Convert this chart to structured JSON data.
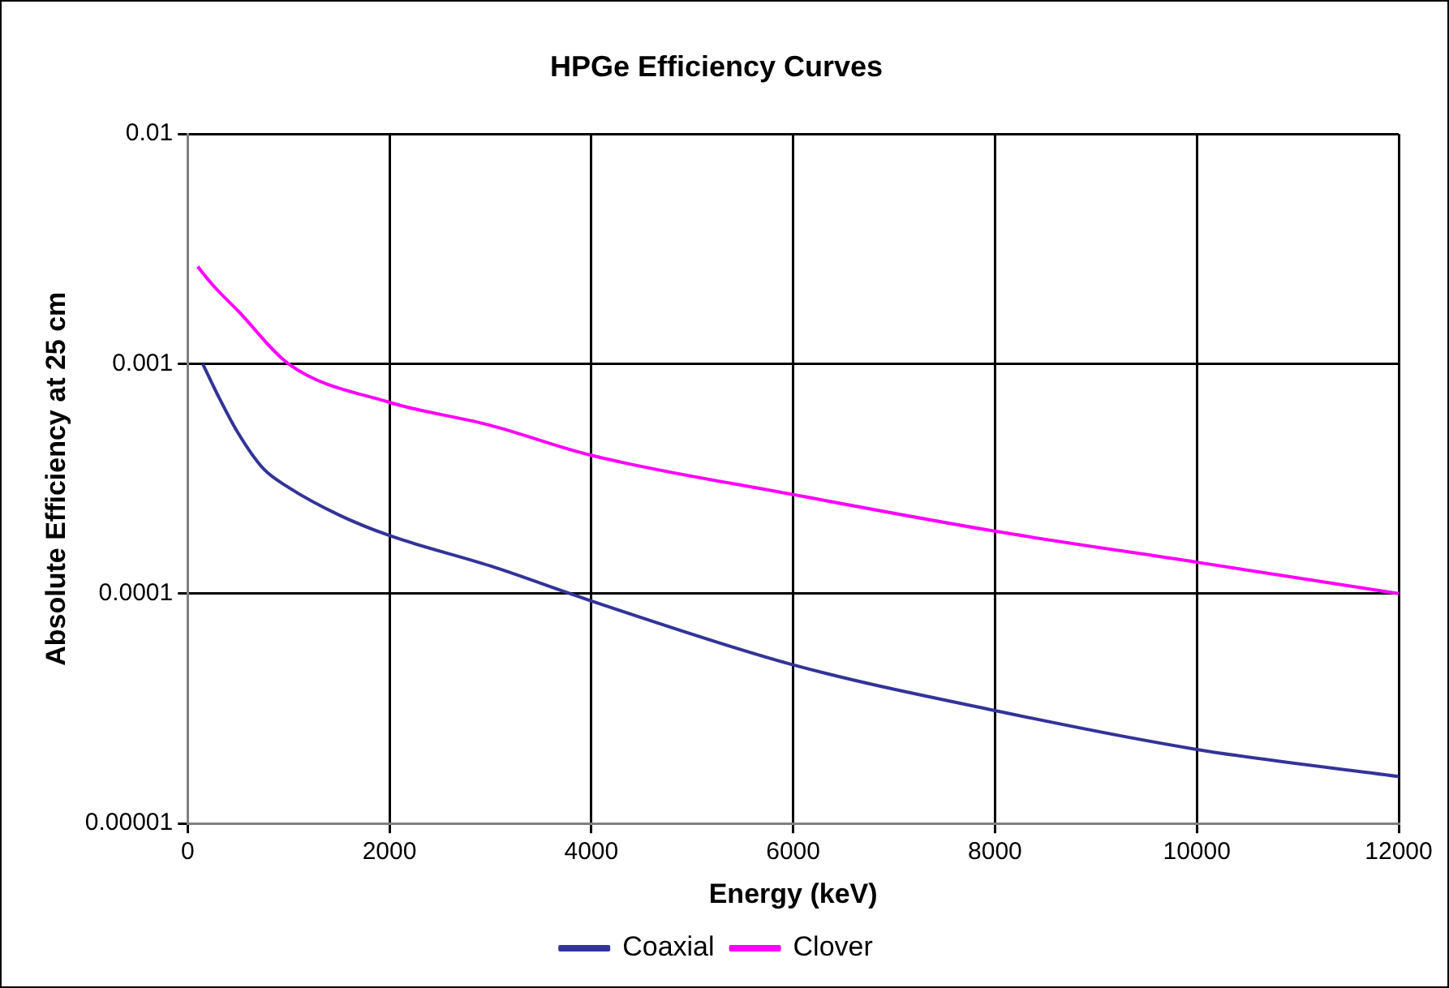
{
  "chart_data": {
    "type": "line",
    "title": "HPGe Efficiency Curves",
    "xlabel": "Energy (keV)",
    "ylabel": "Absolute Efficiency at 25 cm",
    "series": [
      {
        "name": "Coaxial",
        "color": "#333399",
        "x": [
          150,
          300,
          500,
          750,
          1000,
          1500,
          2000,
          3000,
          4000,
          6000,
          8000,
          10000,
          12000
        ],
        "values": [
          0.001,
          0.00073,
          0.0005,
          0.00035,
          0.00029,
          0.00022,
          0.000179,
          0.000132,
          9.3e-05,
          4.9e-05,
          3.1e-05,
          2.1e-05,
          1.6e-05
        ]
      },
      {
        "name": "Clover",
        "color": "#ff00ff",
        "x": [
          100,
          250,
          500,
          1000,
          2000,
          3000,
          4000,
          6000,
          8000,
          10000,
          12000
        ],
        "values": [
          0.00265,
          0.0022,
          0.0017,
          0.001,
          0.00068,
          0.00054,
          0.0004,
          0.00027,
          0.000187,
          0.000137,
          0.0001
        ]
      }
    ],
    "log": "y",
    "xlim": [
      0,
      12000
    ],
    "xticks": [
      0,
      2000,
      4000,
      6000,
      8000,
      10000,
      12000
    ],
    "ylim": [
      1e-05,
      0.01
    ],
    "yticks": [
      {
        "value": 1e-05,
        "label": "0.00001"
      },
      0.0001,
      0.001,
      0.01
    ],
    "grid": true,
    "legend": "bottom",
    "marker": "none",
    "line_style": "solid"
  }
}
